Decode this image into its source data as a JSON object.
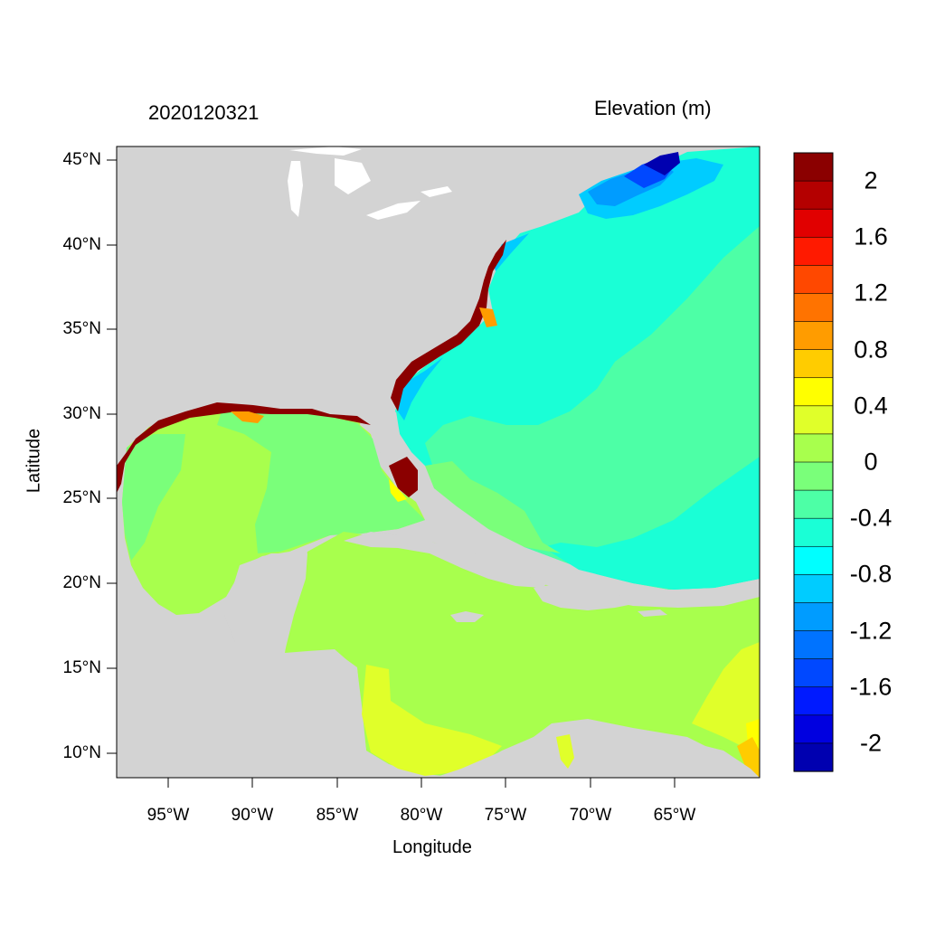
{
  "title_left": "2020120321",
  "title_right": "Elevation (m)",
  "x_axis": {
    "title": "Longitude",
    "ticks": [
      "95°W",
      "90°W",
      "85°W",
      "80°W",
      "75°W",
      "70°W",
      "65°W"
    ],
    "tick_lons": [
      -95,
      -90,
      -85,
      -80,
      -75,
      -70,
      -65
    ],
    "range": [
      -98,
      -60.2
    ]
  },
  "y_axis": {
    "title": "Latitude",
    "ticks": [
      "45°N",
      "40°N",
      "35°N",
      "30°N",
      "25°N",
      "20°N",
      "15°N",
      "10°N"
    ],
    "tick_lats": [
      45,
      40,
      35,
      30,
      25,
      20,
      15,
      10
    ],
    "range": [
      8.5,
      45.8
    ]
  },
  "colorbar": {
    "labels": [
      "2",
      "1.6",
      "1.2",
      "0.8",
      "0.4",
      "0",
      "-0.4",
      "-0.8",
      "-1.2",
      "-1.6",
      "-2"
    ],
    "colors_top_to_bottom": [
      "#8b0000",
      "#b40000",
      "#e10000",
      "#ff1a00",
      "#ff4800",
      "#ff7300",
      "#ff9c00",
      "#ffcc00",
      "#ffff00",
      "#e0ff2a",
      "#a8ff4d",
      "#7aff7a",
      "#4dffa6",
      "#1affd6",
      "#00ffff",
      "#00ccff",
      "#009cff",
      "#0073ff",
      "#0048ff",
      "#001aff",
      "#0000e0",
      "#0000b0"
    ]
  },
  "colors": {
    "land": "#d3d3d3",
    "lakes": "#ffffff",
    "ocean_default": "#4dffa6"
  }
}
